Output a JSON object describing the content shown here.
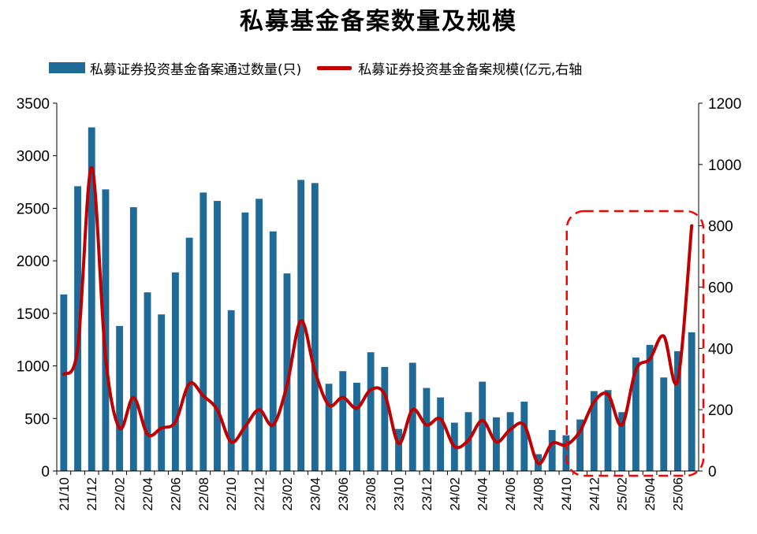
{
  "chart_data": {
    "type": "bar",
    "title": "私募基金备案数量及规模",
    "legend": [
      "私募证券投资基金备案通过数量(只)",
      "私募证券投资基金备案规模(亿元,右轴"
    ],
    "categories": [
      "21/10",
      "21/11",
      "21/12",
      "22/01",
      "22/02",
      "22/03",
      "22/04",
      "22/05",
      "22/06",
      "22/07",
      "22/08",
      "22/09",
      "22/10",
      "22/11",
      "22/12",
      "23/01",
      "23/02",
      "23/03",
      "23/04",
      "23/05",
      "23/06",
      "23/07",
      "23/08",
      "23/09",
      "23/10",
      "23/11",
      "23/12",
      "24/01",
      "24/02",
      "24/03",
      "24/04",
      "24/05",
      "24/06",
      "24/07",
      "24/08",
      "24/09",
      "24/10",
      "24/11",
      "24/12",
      "25/01",
      "25/02",
      "25/03",
      "25/04",
      "25/05",
      "25/06",
      "25/07"
    ],
    "x_tick_labels": [
      "21/10",
      "21/12",
      "22/02",
      "22/04",
      "22/06",
      "22/08",
      "22/10",
      "22/12",
      "23/02",
      "23/04",
      "23/06",
      "23/08",
      "23/10",
      "23/12",
      "24/02",
      "24/04",
      "24/06",
      "24/08",
      "24/10",
      "24/12",
      "25/02",
      "25/04",
      "25/06"
    ],
    "series": [
      {
        "name": "私募证券投资基金备案通过数量(只)",
        "type": "bar",
        "axis": "left",
        "color": "#1F6A96",
        "values": [
          1680,
          2710,
          3270,
          2680,
          1380,
          2510,
          1700,
          1490,
          1890,
          2220,
          2650,
          2570,
          1530,
          2460,
          2590,
          2280,
          1880,
          2770,
          2740,
          830,
          950,
          840,
          1130,
          990,
          400,
          1030,
          790,
          700,
          460,
          560,
          850,
          510,
          560,
          660,
          160,
          390,
          340,
          490,
          760,
          770,
          560,
          1080,
          1200,
          890,
          1140,
          1320
        ]
      },
      {
        "name": "私募证券投资基金备案规模(亿元,右轴",
        "type": "line",
        "axis": "right",
        "color": "#C00000",
        "values": [
          315,
          400,
          990,
          370,
          140,
          240,
          120,
          140,
          160,
          285,
          245,
          200,
          95,
          145,
          200,
          150,
          280,
          490,
          325,
          215,
          240,
          205,
          265,
          250,
          90,
          200,
          150,
          170,
          80,
          100,
          165,
          95,
          135,
          150,
          25,
          90,
          85,
          130,
          225,
          250,
          150,
          330,
          365,
          440,
          295,
          800
        ]
      }
    ],
    "ylim_left": [
      0,
      3500
    ],
    "yticks_left": [
      0,
      500,
      1000,
      1500,
      2000,
      2500,
      3000,
      3500
    ],
    "ylim_right": [
      0,
      1200
    ],
    "yticks_right": [
      0,
      200,
      400,
      600,
      800,
      1000,
      1200
    ],
    "highlight": {
      "from": "24/11",
      "to": "25/07",
      "color": "#FF0000",
      "style": "dashed-rounded-box"
    },
    "grid": false
  }
}
